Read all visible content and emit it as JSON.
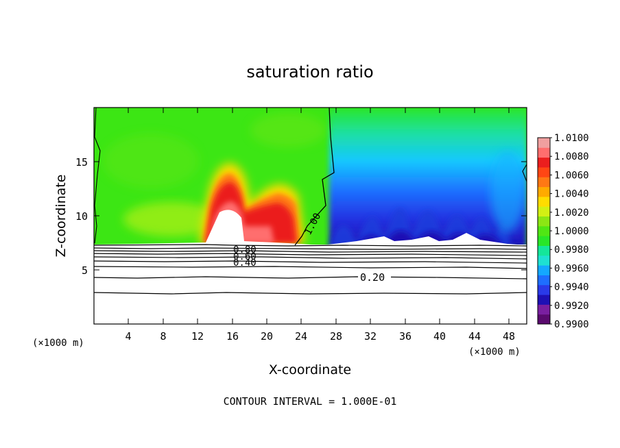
{
  "chart_data": {
    "type": "heatmap",
    "title": "saturation ratio",
    "xlabel": "X-coordinate",
    "ylabel": "Z-coordinate",
    "x_unit": "(×1000 m)",
    "z_unit": "(×1000 m)",
    "footer": "CONTOUR INTERVAL = 1.000E-01",
    "xlim": [
      0,
      50
    ],
    "ylim": [
      0,
      20
    ],
    "x_ticks": [
      4,
      8,
      12,
      16,
      20,
      24,
      28,
      32,
      36,
      40,
      44,
      48
    ],
    "y_ticks": [
      5,
      10,
      15
    ],
    "colorbar": {
      "min": 0.99,
      "max": 1.01,
      "tick_labels": [
        "1.0100",
        "1.0080",
        "1.0060",
        "1.0040",
        "1.0020",
        "1.0000",
        "0.9980",
        "0.9960",
        "0.9940",
        "0.9920",
        "0.9900"
      ],
      "colors": [
        "#5a0a6e",
        "#7a1fa0",
        "#1e10b4",
        "#2a3ae8",
        "#1e6eff",
        "#14a8ff",
        "#1ee0d2",
        "#14e69a",
        "#28e628",
        "#50e614",
        "#8ce614",
        "#d2f014",
        "#ffdc00",
        "#ffaa00",
        "#ff7814",
        "#ff4614",
        "#eb1e1e",
        "#ff6e6e",
        "#f0a0a0"
      ]
    },
    "contour_labels": [
      {
        "text": "1.00",
        "x": 24.6,
        "z": 8.5
      },
      {
        "text": "0.80",
        "x": 17.7,
        "z": 6.9
      },
      {
        "text": "0.60",
        "x": 17.7,
        "z": 6.2
      },
      {
        "text": "0.40",
        "x": 17.7,
        "z": 5.5
      },
      {
        "text": "0.20",
        "x": 32.0,
        "z": 4.2
      }
    ],
    "cloud_boundary_z": 7.2,
    "subsaturated_contours_z": [
      7.2,
      6.9,
      6.6,
      6.3,
      6.0,
      5.6,
      5.1,
      4.3,
      2.8
    ],
    "notable_regions": [
      {
        "name": "supersaturated core",
        "x": 15.5,
        "z": 11.5,
        "value": 1.0095
      },
      {
        "name": "dry downdraft cells",
        "x_centers": [
          29,
          33,
          37,
          41,
          45
        ],
        "value": 0.992
      }
    ]
  }
}
